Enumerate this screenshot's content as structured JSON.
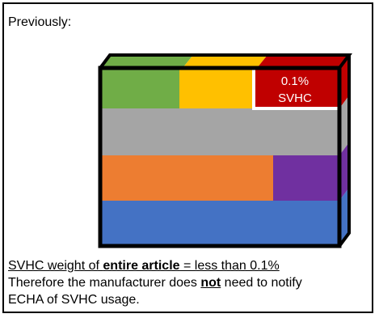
{
  "heading": "Previously:",
  "label_box": {
    "line1": "0.1%",
    "line2": "SVHC"
  },
  "caption": {
    "line1_a": "SVHC weight of ",
    "line1_bold": "entire article",
    "line1_b": " = less than 0.1%",
    "line2_a": "Therefore the manufacturer does ",
    "line2_bold": "not",
    "line2_b": " need to notify",
    "line3": "ECHA of SVHC usage."
  },
  "colors": {
    "green": "#70ad47",
    "yellow": "#ffc000",
    "red": "#c00000",
    "gray": "#a5a5a5",
    "orange": "#ed7d31",
    "purple": "#7030a0",
    "blue": "#4472c4"
  }
}
